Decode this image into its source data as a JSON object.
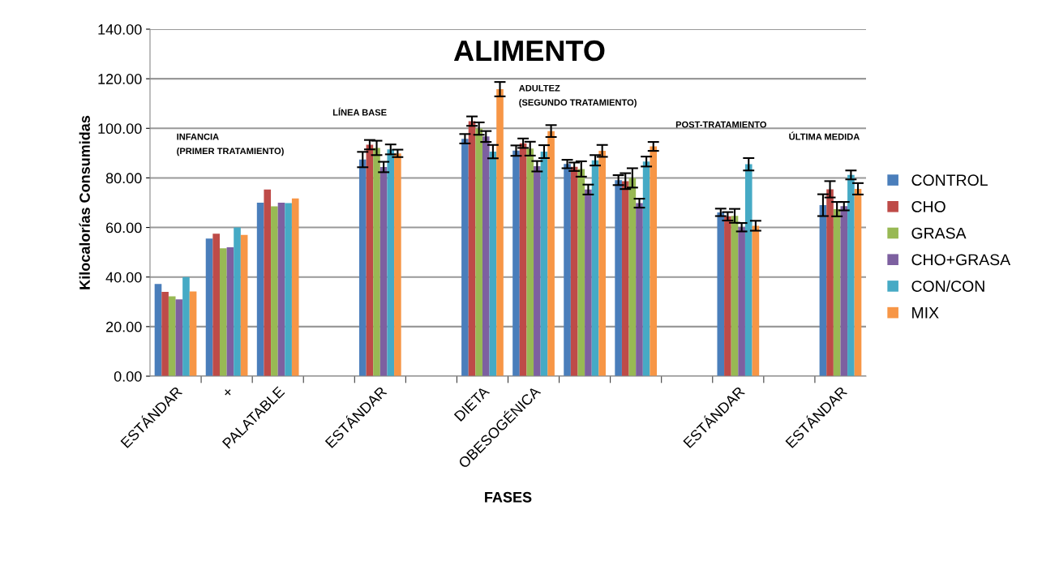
{
  "chart_data": {
    "type": "bar",
    "title": "ALIMENTO",
    "xlabel": "FASES",
    "ylabel": "Kilocalorías Consumidas",
    "categories": [
      "ESTÁNDAR",
      "+",
      "PALATABLE",
      null,
      "ESTÁNDAR",
      null,
      "DIETA",
      "OBESOGÉNICA",
      null,
      null,
      null,
      "ESTÁNDAR",
      null,
      "ESTÁNDAR"
    ],
    "series": [
      {
        "name": "CONTROL",
        "color": "#4a7ebb",
        "values": [
          37.2,
          55.5,
          70,
          null,
          87.4,
          null,
          95.8,
          91.0,
          85.6,
          79.1,
          null,
          66.1,
          null,
          69.0
        ],
        "errors": [
          null,
          null,
          null,
          null,
          3.1,
          null,
          1.9,
          2.1,
          1.7,
          2.0,
          null,
          1.5,
          null,
          4.4
        ]
      },
      {
        "name": "CHO",
        "color": "#be4b48",
        "values": [
          34,
          57.5,
          75.3,
          null,
          93.4,
          null,
          102.9,
          94.0,
          84.5,
          78.7,
          null,
          64.5,
          null,
          75.4
        ],
        "errors": [
          null,
          null,
          null,
          null,
          1.9,
          null,
          1.9,
          1.9,
          1.7,
          3.2,
          null,
          1.7,
          null,
          3.3
        ]
      },
      {
        "name": "GRASA",
        "color": "#98b954",
        "values": [
          32.2,
          51.6,
          68.5,
          null,
          92.1,
          null,
          99.9,
          91.8,
          83.6,
          80.0,
          null,
          64.7,
          null,
          67.4
        ],
        "errors": [
          null,
          null,
          null,
          null,
          2.9,
          null,
          2.5,
          2.8,
          3.1,
          3.9,
          null,
          2.8,
          null,
          2.9
        ]
      },
      {
        "name": "CHO+GRASA",
        "color": "#7d60a0",
        "values": [
          31,
          52,
          70,
          null,
          84.4,
          null,
          96.7,
          84.7,
          75.3,
          69.8,
          null,
          60.1,
          null,
          68.6
        ],
        "errors": [
          null,
          null,
          null,
          null,
          2.1,
          null,
          2.2,
          2.1,
          2.0,
          1.8,
          null,
          1.7,
          null,
          1.7
        ]
      },
      {
        "name": "CON/CON",
        "color": "#46aac5",
        "values": [
          40,
          60,
          69.8,
          null,
          91.5,
          null,
          90.6,
          90.6,
          87.1,
          86.6,
          null,
          85.5,
          null,
          81.2
        ],
        "errors": [
          null,
          null,
          null,
          null,
          2.0,
          null,
          2.7,
          2.6,
          2.1,
          2.0,
          null,
          2.5,
          null,
          1.8
        ]
      },
      {
        "name": "MIX",
        "color": "#f79646",
        "values": [
          34.2,
          57,
          71.7,
          null,
          89.9,
          null,
          115.8,
          98.9,
          90.9,
          92.7,
          null,
          60.7,
          null,
          75.6
        ],
        "errors": [
          null,
          null,
          null,
          null,
          1.5,
          null,
          2.9,
          2.4,
          2.4,
          1.8,
          null,
          2.0,
          null,
          2.3
        ]
      }
    ],
    "ylim": [
      0,
      140
    ],
    "yticks": [
      {
        "value": 0,
        "label": "0.00"
      },
      {
        "value": 20,
        "label": "20.00"
      },
      {
        "value": 40,
        "label": "40.00"
      },
      {
        "value": 60,
        "label": "60.00"
      },
      {
        "value": 80,
        "label": "80.00"
      },
      {
        "value": 100,
        "label": "100.00"
      },
      {
        "value": 120,
        "label": "120.00"
      },
      {
        "value": 140,
        "label": "140.00"
      }
    ],
    "grid": "y",
    "legend": "right",
    "annotations": [
      "INFANCIA\n(PRIMER TRATAMIENTO)",
      "LÍNEA BASE",
      "ADULTEZ\n(SEGUNDO TRATAMIENTO)",
      "POST-TRATAMIENTO",
      "ÚLTIMA MEDIDA"
    ]
  }
}
